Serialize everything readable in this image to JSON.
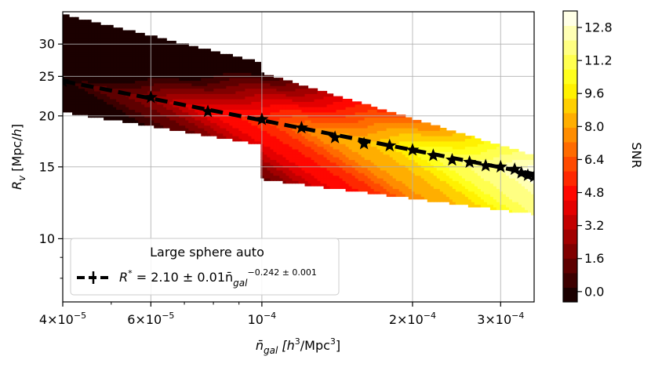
{
  "chart_data": {
    "type": "contour",
    "xlabel": "n̄_gal [h^3/Mpc^3]",
    "ylabel": "R_v [Mpc/h]",
    "x_scale": "log",
    "y_scale": "log",
    "xlim": [
      4e-05,
      0.00035
    ],
    "ylim": [
      7.0,
      36.0
    ],
    "grid": true,
    "x_ticks": [
      {
        "value": 4e-05,
        "mantissa": "4",
        "exp": "−5"
      },
      {
        "value": 6e-05,
        "mantissa": "6",
        "exp": "−5"
      },
      {
        "value": 0.0001,
        "mantissa": "",
        "exp": "−4"
      },
      {
        "value": 0.0002,
        "mantissa": "2",
        "exp": "−4"
      },
      {
        "value": 0.0003,
        "mantissa": "3",
        "exp": "−4"
      }
    ],
    "y_ticks": [
      10,
      15,
      20,
      25,
      30
    ],
    "colorbar": {
      "label": "SNR",
      "min": -0.5,
      "max": 13.6,
      "levels": 20,
      "tick_labels": [
        "0.0",
        "1.6",
        "3.2",
        "4.8",
        "6.4",
        "8.0",
        "9.6",
        "11.2",
        "12.8"
      ],
      "tick_values": [
        0.0,
        1.6,
        3.2,
        4.8,
        6.4,
        8.0,
        9.6,
        11.2,
        12.8
      ]
    },
    "snr_surface": {
      "low_region": {
        "x_max": 0.0001,
        "R_low_at_xmin": 20.5,
        "R_low_at_xmax": 17.0,
        "R_high_at_xmin": 35.5,
        "R_high_at_xmax": 27.0
      },
      "high_region": {
        "x_min": 0.0001,
        "R_low_at_xmin": 14.0,
        "R_low_at_xmax": 11.5,
        "R_high_at_xmin": 25.5,
        "R_high_at_xmax": 16.0
      }
    },
    "fit_line": {
      "amplitude": 2.1,
      "exponent": -0.242,
      "style": "dashed",
      "color": "#000000"
    },
    "series": [
      {
        "marker": "star",
        "x": [
          4e-05,
          6e-05,
          7.8e-05,
          0.0001,
          0.00012,
          0.00014,
          0.00016,
          0.00018,
          0.0002,
          0.00022,
          0.00024,
          0.00026,
          0.00028,
          0.0003,
          0.00032,
          0.00033,
          0.00034,
          0.00035
        ],
        "y": [
          24.3,
          22.2,
          20.5,
          19.6,
          18.7,
          17.7,
          17.1,
          16.9,
          16.5,
          16.0,
          15.6,
          15.4,
          15.1,
          15.0,
          14.8,
          14.5,
          14.3,
          14.2
        ],
        "yerr": [
          0.2,
          0.2,
          0.2,
          0.2,
          0.15,
          0.15,
          0.15,
          0.15,
          0.15,
          0.15,
          0.15,
          0.15,
          0.15,
          0.15,
          0.15,
          0.15,
          0.15,
          0.15
        ]
      }
    ],
    "legend": {
      "title": "Large sphere auto",
      "entry_prefix": "R",
      "entry_sup": "*",
      "entry_mid": " = 2.10 ± 0.01n̄",
      "entry_sub": "gal",
      "entry_exp": "−0.242 ± 0.001",
      "placement": "lower-left"
    }
  }
}
